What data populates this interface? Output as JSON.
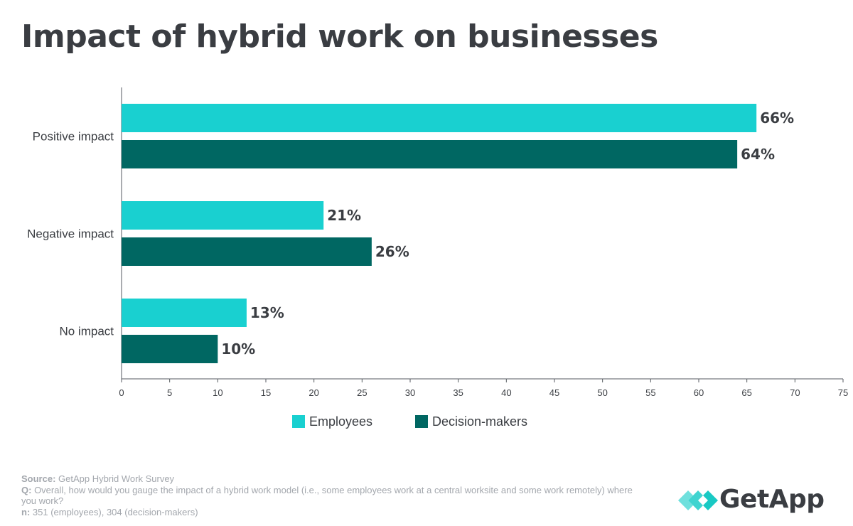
{
  "title": "Impact of hybrid work on businesses",
  "colors": {
    "employees": "#19d0d0",
    "decision_makers": "#006762",
    "text": "#3a3d42",
    "footer_text": "#a3a7ad",
    "logo_light": "#6fe0dd",
    "logo_dark": "#19c9c4"
  },
  "chart_data": {
    "type": "bar",
    "orientation": "horizontal",
    "categories": [
      "Positive impact",
      "Negative impact",
      "No impact"
    ],
    "series": [
      {
        "name": "Employees",
        "values": [
          66,
          21,
          13
        ],
        "labels": [
          "66%",
          "21%",
          "13%"
        ]
      },
      {
        "name": "Decision-makers",
        "values": [
          64,
          26,
          10
        ],
        "labels": [
          "64%",
          "26%",
          "10%"
        ]
      }
    ],
    "xlim": [
      0,
      75
    ],
    "xticks": [
      0,
      5,
      10,
      15,
      20,
      25,
      30,
      35,
      40,
      45,
      50,
      55,
      60,
      65,
      70,
      75
    ],
    "legend_position": "bottom",
    "grid": false
  },
  "footer": {
    "source_label": "Source:",
    "source_text": " GetApp Hybrid Work Survey",
    "q_label": "Q:",
    "q_text": " Overall, how would you gauge the impact of a hybrid work model (i.e., some employees work at a central worksite and some work remotely) where you work?",
    "n_label": "n:",
    "n_text": " 351 (employees), 304 (decision-makers)"
  },
  "logo": {
    "text": "GetApp",
    "icon": "getapp-chevrons-icon"
  }
}
